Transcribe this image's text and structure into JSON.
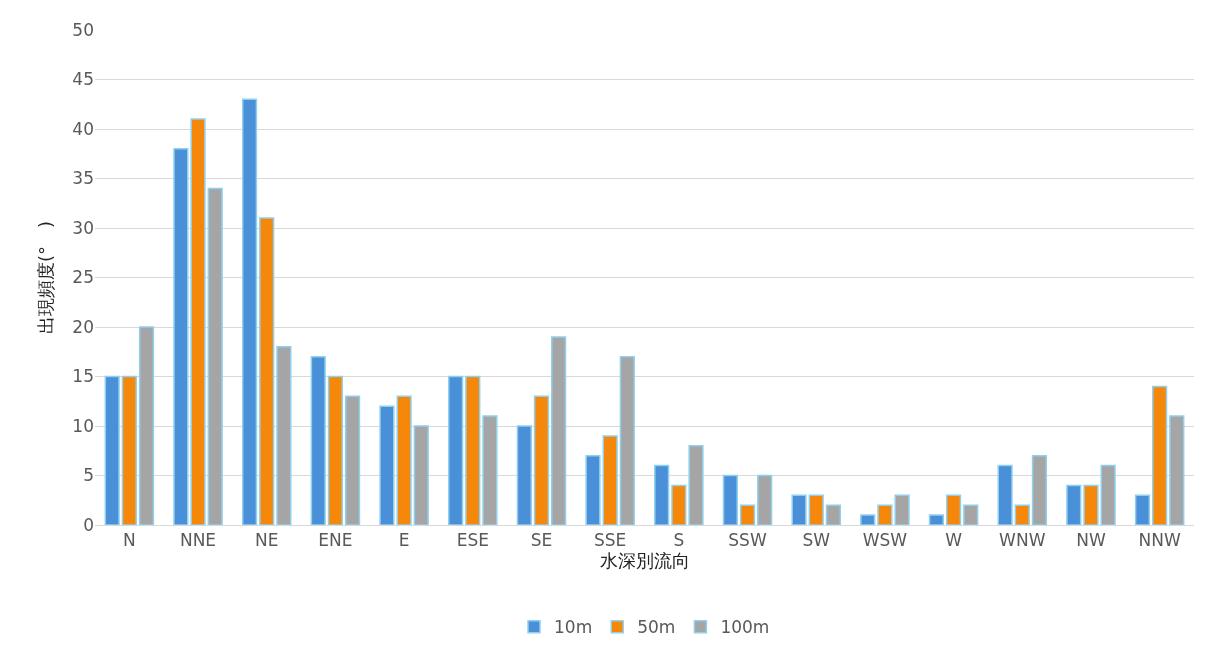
{
  "chart_data": {
    "type": "bar",
    "xlabel": "水深別流向",
    "ylabel": "出現頻度(°　)",
    "categories": [
      "N",
      "NNE",
      "NE",
      "ENE",
      "E",
      "ESE",
      "SE",
      "SSE",
      "S",
      "SSW",
      "SW",
      "WSW",
      "W",
      "WNW",
      "NW",
      "NNW"
    ],
    "series": [
      {
        "name": "10m",
        "color": "#4a90d9",
        "values": [
          15,
          38,
          43,
          17,
          12,
          15,
          10,
          7,
          6,
          5,
          3,
          1,
          1,
          6,
          4,
          3
        ]
      },
      {
        "name": "50m",
        "color": "#f5870a",
        "values": [
          15,
          41,
          31,
          15,
          13,
          15,
          13,
          9,
          4,
          2,
          3,
          2,
          3,
          2,
          4,
          14
        ]
      },
      {
        "name": "100m",
        "color": "#a5a5a5",
        "values": [
          20,
          34,
          18,
          13,
          10,
          11,
          19,
          17,
          8,
          5,
          2,
          3,
          2,
          7,
          6,
          11
        ]
      }
    ],
    "ylim": [
      0,
      50
    ],
    "yticks": [
      0,
      5,
      10,
      15,
      20,
      25,
      30,
      35,
      40,
      45,
      50
    ],
    "grid": "y",
    "legend": "bottom"
  }
}
